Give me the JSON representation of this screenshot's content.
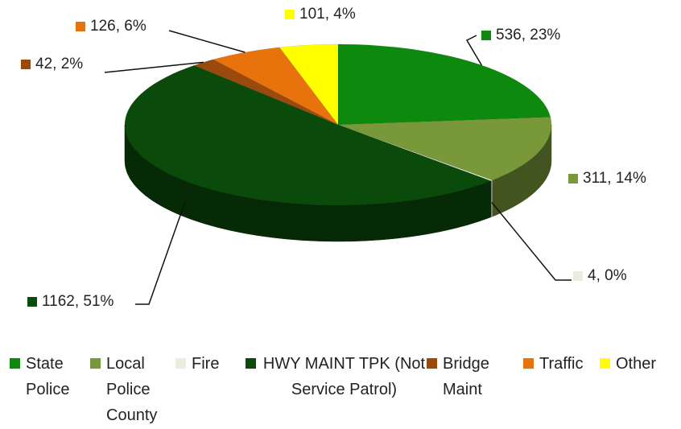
{
  "chart_data": {
    "type": "pie3d",
    "categories": [
      "State Police",
      "Local Police County",
      "Fire",
      "HWY MAINT TPK (Not Service Patrol)",
      "Bridge Maint",
      "Traffic",
      "Other"
    ],
    "values": [
      536,
      311,
      4,
      1162,
      42,
      126,
      101
    ],
    "value_labels": [
      "536, 23%",
      "311, 14%",
      "4, 0%",
      "1162, 51%",
      "42, 2%",
      "126, 6%",
      "101, 4%"
    ],
    "colors": [
      "#0d8a0d",
      "#78983a",
      "#ededdf",
      "#0a4a0a",
      "#9a4a0c",
      "#e8720c",
      "#ffff00"
    ],
    "legend": "bottom"
  }
}
